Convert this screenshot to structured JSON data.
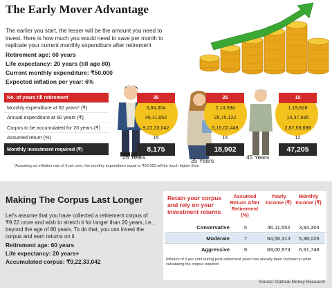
{
  "title": "The Early Mover Advantage",
  "intro": "The earlier you start, the lesser will be the amount you need to invest. Here is how much you would need to save per month to replicate your current monthly expenditure after retirement",
  "facts": [
    "Retirement age: 60 years",
    "Life expectancy: 20 years (till age 80)",
    "Current monthly expenditure: ₹50,000",
    "Expected inflation per year: 6%"
  ],
  "table": {
    "labels": [
      "No. of years till retirement",
      "Monthly expenditure at 60 years* (₹)",
      "Annual expenditure at 60 years (₹)",
      "Corpus to be accumulated for 20 years (₹)",
      "Assumed return (%)",
      "Monthly investment required (₹)"
    ],
    "columns": [
      {
        "age": "25 Years",
        "values": [
          "35",
          "3,84,304",
          "46,11,652",
          "9,22,33,042",
          "15",
          "8,175"
        ]
      },
      {
        "age": "35 Years",
        "values": [
          "25",
          "2,14,594",
          "25,75,122",
          "5,15,02,449",
          "15",
          "18,902"
        ]
      },
      {
        "age": "45 Years",
        "values": [
          "15",
          "1,19,828",
          "14,37,935",
          "2,87,58,698",
          "12",
          "47,205"
        ]
      }
    ]
  },
  "footnote1": "*Assuming an inflation rate of 6 per cent, the monthly expenditure equal to ₹50,000 will be much higher then",
  "section2": {
    "title": "Making The Corpus Last Longer",
    "text": "Let's assume that you have collected a retirement corpus of ₹9.22 crore and wish to stretch it for longer than 20 years, i.e., beyond the age of 80 years. To do that, you can invest the corpus and earn returns on it",
    "facts": [
      "Retirement age: 60 years",
      "Life expectancy: 20 years+",
      "Accumulated corpus: ₹9,22,33,042"
    ],
    "table_title": "Retain your corpus and rely on your investment returns",
    "headers": [
      "Assumed Return After Retirement (%)",
      "Yearly Income (₹)",
      "Monthly Income (₹)"
    ],
    "rows": [
      {
        "name": "Conservative",
        "ret": "5",
        "yearly": "46,11,652",
        "monthly": "3,84,304"
      },
      {
        "name": "Moderate",
        "ret": "7",
        "yearly": "64,56,313",
        "monthly": "5,38,026"
      },
      {
        "name": "Aggressive",
        "ret": "9",
        "yearly": "83,00,974",
        "monthly": "6,91,748"
      }
    ],
    "note": "Inflation of 6 per cent during post-retirement years has already been factored in while calculating the corpus required"
  },
  "source": "Source: Outlook Money Research",
  "colors": {
    "accent": "#d52a2a",
    "gold": "#f4c21d",
    "arrow": "#3aa832",
    "dark": "#2a2a2a",
    "highlight": "#dce9f5"
  }
}
